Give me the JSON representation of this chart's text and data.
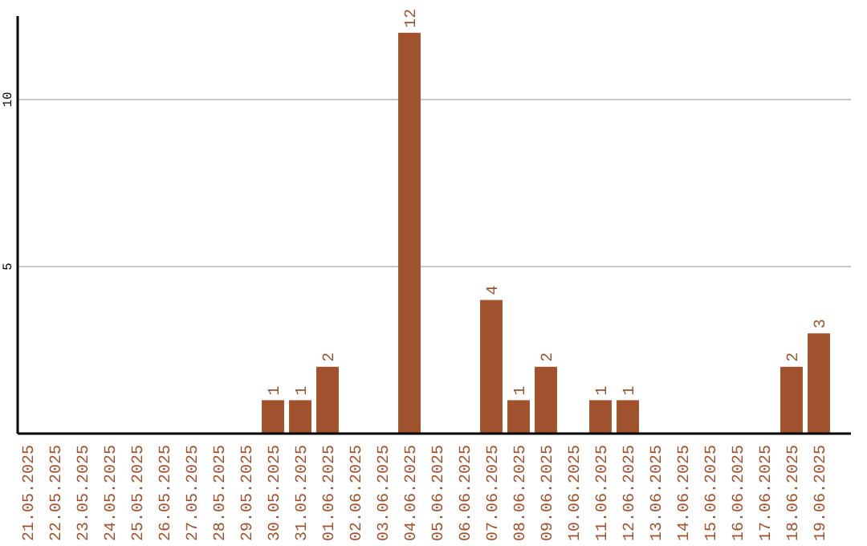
{
  "chart_data": {
    "type": "bar",
    "categories": [
      "21.05.2025",
      "22.05.2025",
      "23.05.2025",
      "24.05.2025",
      "25.05.2025",
      "26.05.2025",
      "27.05.2025",
      "28.05.2025",
      "29.05.2025",
      "30.05.2025",
      "31.05.2025",
      "01.06.2025",
      "02.06.2025",
      "03.06.2025",
      "04.06.2025",
      "05.06.2025",
      "06.06.2025",
      "07.06.2025",
      "08.06.2025",
      "09.06.2025",
      "10.06.2025",
      "11.06.2025",
      "12.06.2025",
      "13.06.2025",
      "14.06.2025",
      "15.06.2025",
      "16.06.2025",
      "17.06.2025",
      "18.06.2025",
      "19.06.2025"
    ],
    "values": [
      0,
      0,
      0,
      0,
      0,
      0,
      0,
      0,
      0,
      1,
      1,
      2,
      0,
      0,
      12,
      0,
      0,
      4,
      1,
      2,
      0,
      1,
      1,
      0,
      0,
      0,
      0,
      0,
      2,
      3
    ],
    "value_labels": [
      null,
      null,
      null,
      null,
      null,
      null,
      null,
      null,
      null,
      "1",
      "1",
      "2",
      null,
      null,
      "12",
      null,
      null,
      "4",
      "1",
      "2",
      null,
      "1",
      "1",
      null,
      null,
      null,
      null,
      null,
      "2",
      "3"
    ],
    "color": "#a0522d",
    "ylim": [
      0,
      12.5
    ],
    "yticks": [
      5,
      10
    ],
    "grid": "y"
  }
}
